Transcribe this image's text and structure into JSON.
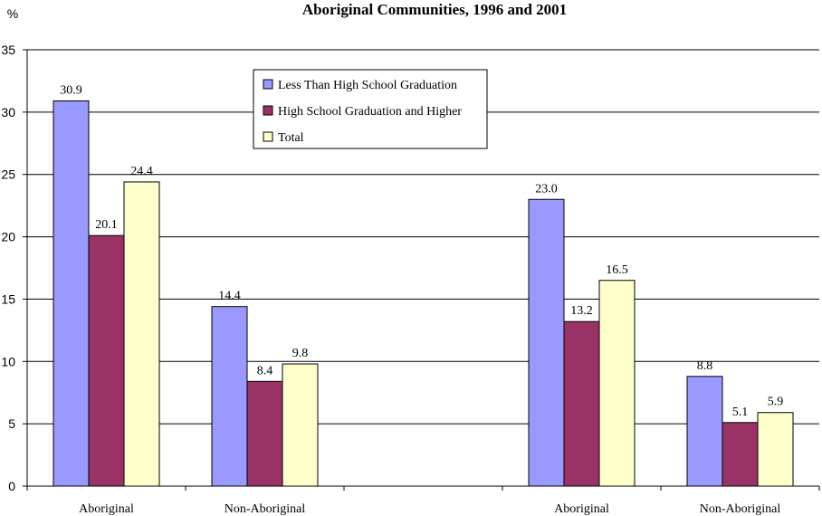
{
  "chart_data": {
    "type": "bar",
    "title": "Aboriginal Communities, 1996 and 2001",
    "ylabel": "%",
    "xlabel": "",
    "ylim": [
      0,
      35
    ],
    "yticks": [
      0,
      5,
      10,
      15,
      20,
      25,
      30,
      35
    ],
    "grid": true,
    "legend_position": "top-center",
    "categories": [
      "Aboriginal",
      "Non-Aboriginal",
      "",
      "Aboriginal",
      "Non-Aboriginal"
    ],
    "series": [
      {
        "name": "Less Than High School Graduation",
        "color": "#9999ff",
        "values": [
          30.9,
          14.4,
          null,
          23.0,
          8.8
        ],
        "labels": [
          "30.9",
          "14.4",
          "",
          "23.0",
          "8.8"
        ]
      },
      {
        "name": "High School Graduation and Higher",
        "color": "#993366",
        "values": [
          20.1,
          8.4,
          null,
          13.2,
          5.1
        ],
        "labels": [
          "20.1",
          "8.4",
          "",
          "13.2",
          "5.1"
        ]
      },
      {
        "name": "Total",
        "color": "#ffffcc",
        "values": [
          24.4,
          9.8,
          null,
          16.5,
          5.9
        ],
        "labels": [
          "24.4",
          "9.8",
          "",
          "16.5",
          "5.9"
        ]
      }
    ]
  }
}
